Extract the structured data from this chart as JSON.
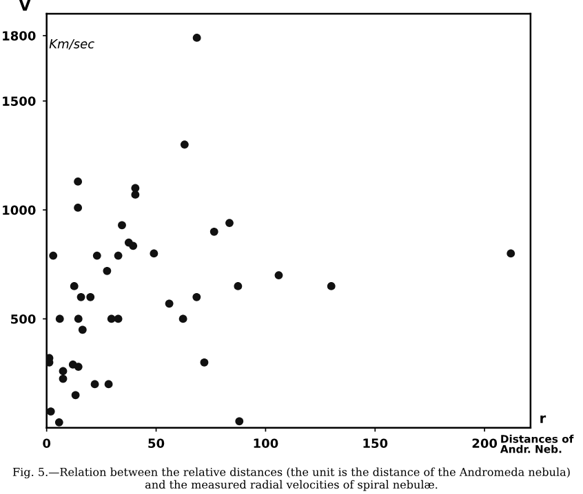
{
  "chart_data": {
    "type": "scatter",
    "xlabel": "r",
    "ylabel": "V",
    "x": [
      68.6,
      63,
      14.3,
      14.3,
      40.5,
      40.5,
      34.4,
      37.5,
      39.5,
      76.5,
      83.5,
      3,
      23,
      32.7,
      49,
      27.6,
      12.6,
      106,
      87.4,
      68.5,
      56,
      15.7,
      20,
      6,
      14.5,
      29.6,
      32.7,
      62.3,
      16.4,
      1.2,
      1.2,
      7.5,
      12,
      14.5,
      7.5,
      72,
      22,
      28.3,
      13.2,
      1.9,
      5.7,
      88,
      130,
      212
    ],
    "values": [
      1790,
      1300,
      1130,
      1010,
      1100,
      1070,
      930,
      850,
      835,
      900,
      940,
      790,
      790,
      790,
      800,
      720,
      650,
      700,
      650,
      600,
      570,
      600,
      600,
      500,
      500,
      500,
      500,
      500,
      450,
      320,
      300,
      260,
      290,
      280,
      225,
      300,
      200,
      200,
      150,
      75,
      25,
      30,
      650,
      800
    ],
    "color": "#111111",
    "marker": "circle",
    "xlim": [
      0,
      221
    ],
    "ylim": [
      0,
      1900
    ],
    "xticks": [
      0,
      50,
      100,
      150,
      200
    ],
    "yticks": [
      500,
      1000,
      1500,
      1800
    ],
    "grid": false,
    "annotations": [
      "Km/sec",
      "Distances of Andr. Neb.",
      "Fig. 5.—Relation between the relative distances (the unit is the distance of the Andromeda nebula) and the measured radial velocities of spiral nebulæ."
    ]
  }
}
